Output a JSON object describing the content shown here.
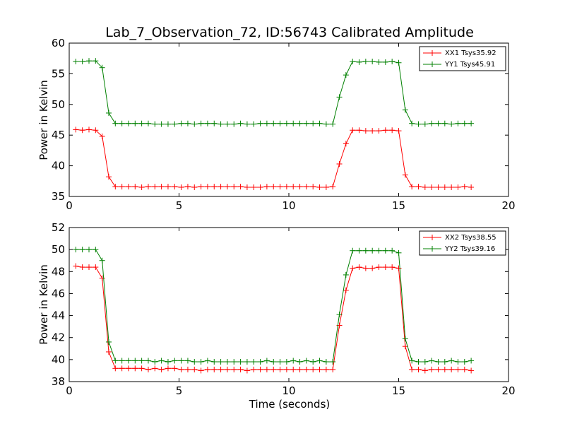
{
  "chart_data": [
    {
      "type": "line",
      "title": "Lab_7_Observation_72, ID:56743 Calibrated Amplitude",
      "xlabel": "",
      "ylabel": "Power in Kelvin",
      "xlim": [
        0,
        20
      ],
      "ylim": [
        35,
        60
      ],
      "xticks": [
        0,
        5,
        10,
        15,
        20
      ],
      "yticks": [
        35,
        40,
        45,
        50,
        55,
        60
      ],
      "grid": false,
      "legend_position": "top-right",
      "x": [
        0.3,
        0.6,
        0.9,
        1.2,
        1.5,
        1.8,
        2.1,
        2.4,
        2.7,
        3.0,
        3.3,
        3.6,
        3.9,
        4.2,
        4.5,
        4.8,
        5.1,
        5.4,
        5.7,
        6.0,
        6.3,
        6.6,
        6.9,
        7.2,
        7.5,
        7.8,
        8.1,
        8.4,
        8.7,
        9.0,
        9.3,
        9.6,
        9.9,
        10.2,
        10.5,
        10.8,
        11.1,
        11.4,
        11.7,
        12.0,
        12.3,
        12.6,
        12.9,
        13.2,
        13.5,
        13.8,
        14.1,
        14.4,
        14.7,
        15.0,
        15.3,
        15.6,
        15.9,
        16.2,
        16.5,
        16.8,
        17.1,
        17.4,
        17.7,
        18.0,
        18.3
      ],
      "series": [
        {
          "name": "XX1 Tsys35.92",
          "color": "#ff0000",
          "values": [
            45.9,
            45.8,
            45.9,
            45.8,
            44.8,
            38.2,
            36.6,
            36.6,
            36.6,
            36.6,
            36.5,
            36.6,
            36.6,
            36.6,
            36.6,
            36.6,
            36.5,
            36.6,
            36.5,
            36.6,
            36.6,
            36.6,
            36.6,
            36.6,
            36.6,
            36.6,
            36.5,
            36.5,
            36.5,
            36.6,
            36.6,
            36.6,
            36.6,
            36.6,
            36.6,
            36.6,
            36.6,
            36.5,
            36.5,
            36.6,
            40.3,
            43.6,
            45.8,
            45.8,
            45.7,
            45.7,
            45.7,
            45.8,
            45.8,
            45.7,
            38.5,
            36.6,
            36.6,
            36.5,
            36.5,
            36.5,
            36.5,
            36.5,
            36.5,
            36.6,
            36.5
          ]
        },
        {
          "name": "YY1 Tsys45.91",
          "color": "#008000",
          "values": [
            57.0,
            57.0,
            57.1,
            57.1,
            56.0,
            48.6,
            46.9,
            46.9,
            46.9,
            46.9,
            46.9,
            46.9,
            46.8,
            46.8,
            46.8,
            46.8,
            46.9,
            46.9,
            46.8,
            46.9,
            46.9,
            46.9,
            46.8,
            46.8,
            46.8,
            46.9,
            46.8,
            46.8,
            46.9,
            46.9,
            46.9,
            46.9,
            46.9,
            46.9,
            46.9,
            46.9,
            46.9,
            46.9,
            46.8,
            46.8,
            51.2,
            54.8,
            57.0,
            56.9,
            57.0,
            57.0,
            56.9,
            56.9,
            57.0,
            56.8,
            49.1,
            46.9,
            46.8,
            46.8,
            46.9,
            46.9,
            46.9,
            46.8,
            46.9,
            46.9,
            46.9
          ]
        }
      ]
    },
    {
      "type": "line",
      "title": "",
      "xlabel": "Time (seconds)",
      "ylabel": "Power in Kelvin",
      "xlim": [
        0,
        20
      ],
      "ylim": [
        38,
        52
      ],
      "xticks": [
        0,
        5,
        10,
        15,
        20
      ],
      "yticks": [
        38,
        40,
        42,
        44,
        46,
        48,
        50,
        52
      ],
      "grid": false,
      "legend_position": "top-right",
      "x": [
        0.3,
        0.6,
        0.9,
        1.2,
        1.5,
        1.8,
        2.1,
        2.4,
        2.7,
        3.0,
        3.3,
        3.6,
        3.9,
        4.2,
        4.5,
        4.8,
        5.1,
        5.4,
        5.7,
        6.0,
        6.3,
        6.6,
        6.9,
        7.2,
        7.5,
        7.8,
        8.1,
        8.4,
        8.7,
        9.0,
        9.3,
        9.6,
        9.9,
        10.2,
        10.5,
        10.8,
        11.1,
        11.4,
        11.7,
        12.0,
        12.3,
        12.6,
        12.9,
        13.2,
        13.5,
        13.8,
        14.1,
        14.4,
        14.7,
        15.0,
        15.3,
        15.6,
        15.9,
        16.2,
        16.5,
        16.8,
        17.1,
        17.4,
        17.7,
        18.0,
        18.3
      ],
      "series": [
        {
          "name": "XX2 Tsys38.55",
          "color": "#ff0000",
          "values": [
            48.5,
            48.4,
            48.4,
            48.4,
            47.4,
            40.7,
            39.2,
            39.2,
            39.2,
            39.2,
            39.2,
            39.1,
            39.2,
            39.1,
            39.2,
            39.2,
            39.1,
            39.1,
            39.1,
            39.0,
            39.1,
            39.1,
            39.1,
            39.1,
            39.1,
            39.1,
            39.0,
            39.1,
            39.1,
            39.1,
            39.1,
            39.1,
            39.1,
            39.1,
            39.1,
            39.1,
            39.1,
            39.1,
            39.1,
            39.1,
            43.1,
            46.3,
            48.3,
            48.4,
            48.3,
            48.3,
            48.4,
            48.4,
            48.4,
            48.3,
            41.2,
            39.1,
            39.1,
            39.0,
            39.1,
            39.1,
            39.1,
            39.1,
            39.1,
            39.1,
            39.0
          ]
        },
        {
          "name": "YY2 Tsys39.16",
          "color": "#008000",
          "values": [
            50.0,
            50.0,
            50.0,
            50.0,
            49.0,
            41.6,
            39.9,
            39.9,
            39.9,
            39.9,
            39.9,
            39.9,
            39.8,
            39.9,
            39.8,
            39.9,
            39.9,
            39.9,
            39.8,
            39.8,
            39.9,
            39.8,
            39.8,
            39.8,
            39.8,
            39.8,
            39.8,
            39.8,
            39.8,
            39.9,
            39.8,
            39.8,
            39.8,
            39.9,
            39.8,
            39.9,
            39.8,
            39.9,
            39.8,
            39.8,
            44.1,
            47.7,
            49.9,
            49.9,
            49.9,
            49.9,
            49.9,
            49.9,
            49.9,
            49.7,
            41.9,
            39.9,
            39.8,
            39.8,
            39.9,
            39.8,
            39.8,
            39.9,
            39.8,
            39.8,
            39.9
          ]
        }
      ]
    }
  ]
}
